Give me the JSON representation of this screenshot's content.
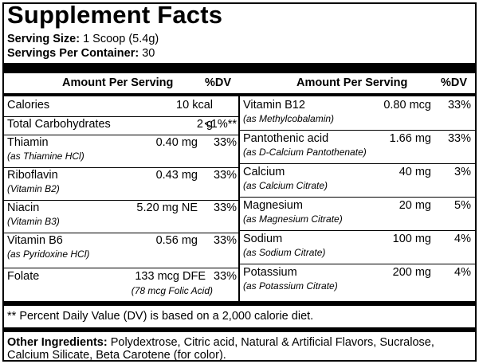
{
  "title": "Supplement Facts",
  "serving_size": {
    "label": "Serving Size:",
    "value": "1 Scoop (5.4g)"
  },
  "servings_per_container": {
    "label": "Servings Per Container:",
    "value": "30"
  },
  "headers": {
    "left_amount": "Amount Per Serving",
    "left_dv": "%DV",
    "right_amount": "Amount Per Serving",
    "right_dv": "%DV"
  },
  "left_rows": [
    {
      "name": "Calories",
      "sub": "",
      "amount": "10 kcal",
      "dv": ""
    },
    {
      "name": "Total Carbohydrates",
      "sub": "",
      "amount": "2 g",
      "dv": "<1%**"
    },
    {
      "name": "Thiamin",
      "sub": "(as Thiamine HCl)",
      "amount": "0.40 mg",
      "dv": "33%"
    },
    {
      "name": "Riboflavin",
      "sub": "(Vitamin B2)",
      "amount": "0.43 mg",
      "dv": "33%"
    },
    {
      "name": "Niacin",
      "sub": "(Vitamin B3)",
      "amount": "5.20 mg NE",
      "dv": "33%"
    },
    {
      "name": "Vitamin B6",
      "sub": "(as Pyridoxine HCl)",
      "amount": "0.56 mg",
      "dv": "33%"
    },
    {
      "name": "Folate",
      "sub": "",
      "amount": "133 mcg DFE",
      "amount_sub": "(78 mcg Folic Acid)",
      "dv": "33%"
    }
  ],
  "right_rows": [
    {
      "name": "Vitamin B12",
      "sub": "(as Methylcobalamin)",
      "amount": "0.80 mcg",
      "dv": "33%"
    },
    {
      "name": "Pantothenic acid",
      "sub": "(as D-Calcium Pantothenate)",
      "amount": "1.66 mg",
      "dv": "33%"
    },
    {
      "name": "Calcium",
      "sub": "(as Calcium Citrate)",
      "amount": "40 mg",
      "dv": "3%"
    },
    {
      "name": "Magnesium",
      "sub": "(as Magnesium Citrate)",
      "amount": "20 mg",
      "dv": "5%"
    },
    {
      "name": "Sodium",
      "sub": "(as Sodium Citrate)",
      "amount": "100 mg",
      "dv": "4%"
    },
    {
      "name": "Potassium",
      "sub": "(as Potassium Citrate)",
      "amount": "200 mg",
      "dv": "4%"
    }
  ],
  "footnote": "** Percent Daily Value (DV) is based on a 2,000 calorie diet.",
  "other_ingredients": {
    "label": "Other Ingredients:",
    "text": " Polydextrose, Citric acid, Natural & Artificial Flavors, Sucralose, Calcium Silicate, Beta Carotene (for color)."
  }
}
